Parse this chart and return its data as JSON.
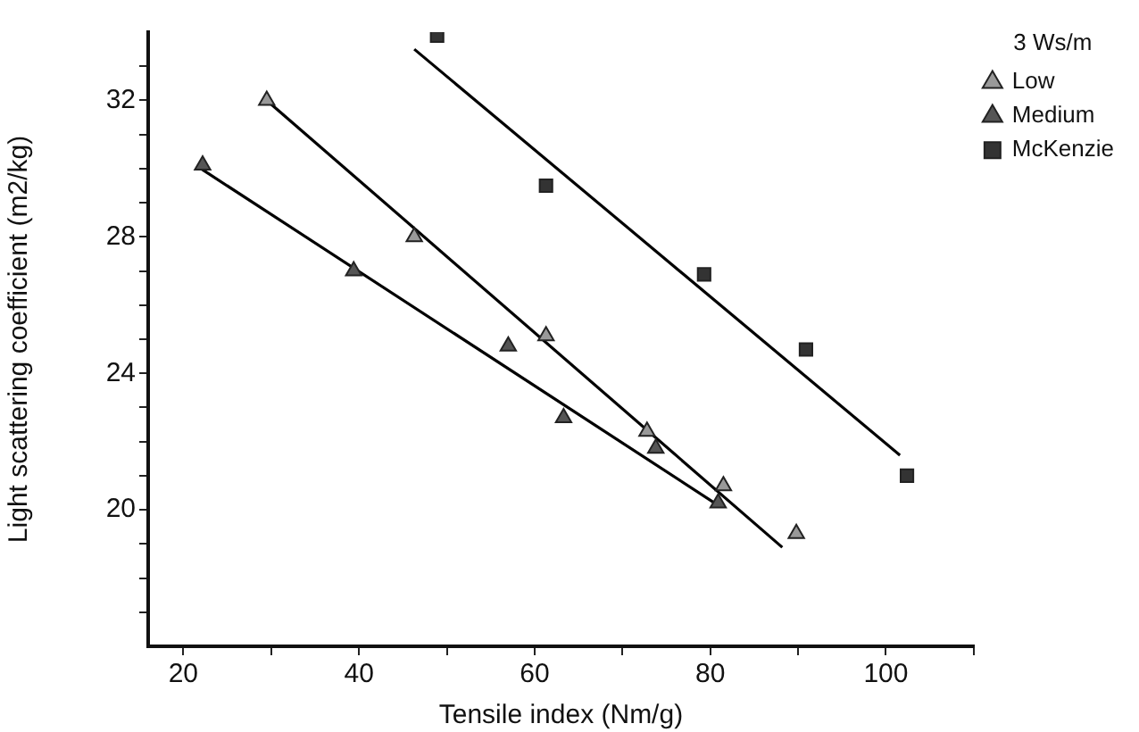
{
  "chart_data": {
    "type": "scatter",
    "xlabel": "Tensile index (Nm/g)",
    "ylabel": "Light scattering coefficient (m2/kg)",
    "legend_title": "3 Ws/m",
    "legend": "top right",
    "grid": false,
    "xlim": [
      16,
      110
    ],
    "xticks": [
      20,
      {
        "value": 30,
        "label": null
      },
      40,
      {
        "value": 50,
        "label": null
      },
      60,
      {
        "value": 70,
        "label": null
      },
      80,
      {
        "value": 90,
        "label": null
      },
      100,
      {
        "value": 110,
        "label": null
      }
    ],
    "ylim": [
      16,
      34
    ],
    "yticks": [
      {
        "value": 17,
        "label": null
      },
      {
        "value": 18,
        "label": null
      },
      {
        "value": 19,
        "label": null
      },
      20,
      {
        "value": 21,
        "label": null
      },
      {
        "value": 22,
        "label": null
      },
      {
        "value": 23,
        "label": null
      },
      24,
      {
        "value": 25,
        "label": null
      },
      {
        "value": 26,
        "label": null
      },
      {
        "value": 27,
        "label": null
      },
      28,
      {
        "value": 29,
        "label": null
      },
      {
        "value": 30,
        "label": null
      },
      {
        "value": 31,
        "label": null
      },
      32,
      {
        "value": 33,
        "label": null
      }
    ],
    "series": [
      {
        "name": "Low",
        "marker": "triangle",
        "color": "#999999",
        "x": [
          29.5,
          46.3,
          61.3,
          72.8,
          81.5,
          89.8
        ],
        "values": [
          32,
          28,
          25.1,
          22.3,
          20.7,
          19.3
        ]
      },
      {
        "name": "Medium",
        "marker": "triangle",
        "color": "#555555",
        "x": [
          22.2,
          39.4,
          57,
          63.3,
          73.8,
          80.9
        ],
        "values": [
          30.1,
          27,
          24.8,
          22.7,
          21.8,
          20.2
        ]
      },
      {
        "name": "McKenzie",
        "marker": "square",
        "color": "#333333",
        "x": [
          48.9,
          61.3,
          79.3,
          90.9,
          102.4
        ],
        "values": [
          33.9,
          29.5,
          26.9,
          24.7,
          21
        ]
      },
      {
        "type": "line",
        "marker": "none",
        "color": "#000000",
        "x": [
          29.5,
          88.2
        ],
        "values": [
          32,
          18.9
        ]
      },
      {
        "type": "line",
        "marker": "none",
        "color": "#000000",
        "x": [
          22,
          81.1
        ],
        "values": [
          30,
          20.1
        ]
      },
      {
        "type": "line",
        "marker": "none",
        "color": "#000000",
        "x": [
          46.3,
          101.6
        ],
        "values": [
          33.5,
          21.6
        ]
      }
    ]
  }
}
